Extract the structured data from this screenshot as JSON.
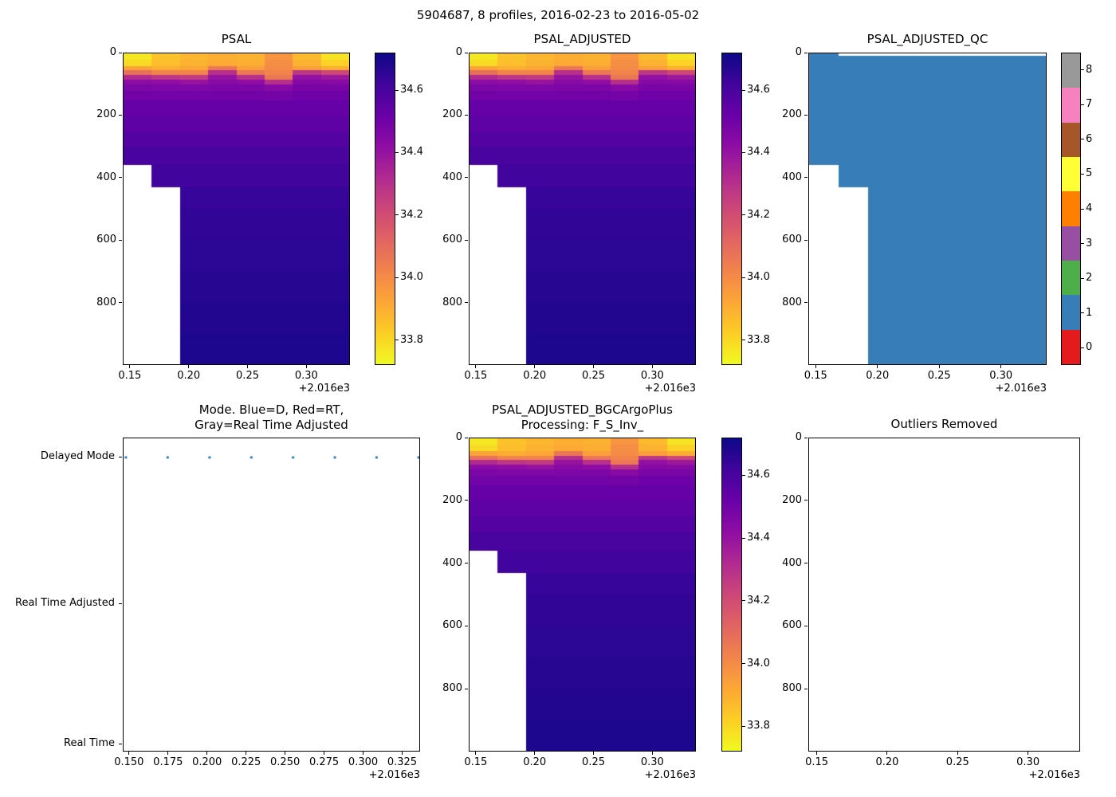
{
  "figure": {
    "suptitle": "5904687, 8 profiles, 2016-02-23 to 2016-05-02",
    "platform": "5904687",
    "n_profiles": 8,
    "date_range": "2016-02-23 to 2016-05-02"
  },
  "colors": {
    "plasma_reversed_stops": [
      "#0d0887",
      "#41049d",
      "#6a00a8",
      "#8f0da4",
      "#b12a90",
      "#cc4778",
      "#e16462",
      "#f2844b",
      "#fca636",
      "#fcce25",
      "#f0f921"
    ],
    "qc_palette_set1": [
      "#e41a1c",
      "#377eb8",
      "#4daf4a",
      "#984ea3",
      "#ff7f00",
      "#ffff33",
      "#a65628",
      "#f781bf",
      "#999999"
    ],
    "mode_dot": "#1f77b4",
    "missing_data": "#ffffff",
    "axis": "#000000"
  },
  "chart_data": [
    {
      "type": "heatmap",
      "title": "PSAL",
      "variable": "PSAL",
      "colormap": "plasma_r",
      "vmin": 33.72,
      "vmax": 34.72,
      "ylim": [
        0,
        1000
      ],
      "y_inverted": true,
      "x_profile_times": [
        2016.1475,
        2016.1744,
        2016.2014,
        2016.2283,
        2016.2552,
        2016.2821,
        2016.309,
        2016.336
      ],
      "x_edges": [
        2016.144,
        2016.1681,
        2016.1922,
        2016.2164,
        2016.2405,
        2016.2646,
        2016.2888,
        2016.3129,
        2016.337
      ],
      "depth_edges": [
        0,
        20,
        40,
        55,
        70,
        85,
        100,
        120,
        150,
        200,
        250,
        300,
        360,
        430,
        500,
        600,
        700,
        800,
        900,
        1000
      ],
      "values": [
        [
          33.76,
          33.79,
          33.93,
          34.08,
          34.32,
          34.43,
          34.47,
          34.5,
          34.53,
          34.55,
          34.57,
          34.6,
          null,
          null,
          null,
          null,
          null,
          null,
          null
        ],
        [
          33.85,
          33.86,
          33.9,
          34.02,
          34.28,
          34.42,
          34.46,
          34.5,
          34.53,
          34.55,
          34.57,
          34.6,
          34.62,
          null,
          null,
          null,
          null,
          null,
          null
        ],
        [
          33.88,
          33.89,
          33.92,
          34.02,
          34.26,
          34.4,
          34.46,
          34.5,
          34.53,
          34.55,
          34.57,
          34.6,
          34.62,
          34.64,
          34.65,
          34.66,
          34.67,
          34.68,
          34.69
        ],
        [
          33.9,
          33.91,
          34.06,
          34.3,
          34.4,
          34.44,
          34.47,
          34.5,
          34.53,
          34.55,
          34.57,
          34.6,
          34.62,
          34.64,
          34.65,
          34.66,
          34.67,
          34.68,
          34.69
        ],
        [
          33.89,
          33.9,
          33.94,
          34.06,
          34.3,
          34.42,
          34.47,
          34.5,
          34.53,
          34.55,
          34.57,
          34.6,
          34.62,
          34.64,
          34.65,
          34.66,
          34.67,
          34.68,
          34.69
        ],
        [
          33.97,
          33.99,
          34.0,
          34.02,
          34.06,
          34.3,
          34.44,
          34.49,
          34.53,
          34.55,
          34.57,
          34.6,
          34.62,
          34.64,
          34.65,
          34.66,
          34.67,
          34.68,
          34.69
        ],
        [
          33.87,
          33.89,
          33.94,
          34.28,
          34.41,
          34.45,
          34.48,
          34.51,
          34.53,
          34.55,
          34.57,
          34.6,
          34.62,
          34.64,
          34.65,
          34.66,
          34.67,
          34.68,
          34.69
        ],
        [
          33.77,
          33.81,
          33.9,
          34.22,
          34.38,
          34.44,
          34.48,
          34.51,
          34.53,
          34.55,
          34.57,
          34.6,
          34.62,
          34.64,
          34.65,
          34.66,
          34.67,
          34.68,
          34.69
        ]
      ],
      "x_tick_values": [
        2016.15,
        2016.2,
        2016.25,
        2016.3
      ],
      "x_tick_labels": [
        "0.15",
        "0.20",
        "0.25",
        "0.30"
      ],
      "y_tick_values": [
        0,
        200,
        400,
        600,
        800
      ],
      "y_tick_labels": [
        "0",
        "200",
        "400",
        "600",
        "800"
      ],
      "x_offset_label": "+2.016e3",
      "colorbar": {
        "type": "gradient",
        "tick_values": [
          34.6,
          34.4,
          34.2,
          34.0,
          33.8
        ],
        "tick_labels": [
          "34.6",
          "34.4",
          "34.2",
          "34.0",
          "33.8"
        ]
      }
    },
    {
      "type": "heatmap",
      "title": "PSAL_ADJUSTED",
      "variable": "PSAL_ADJUSTED",
      "ref": 0
    },
    {
      "type": "heatmap",
      "title": "PSAL_ADJUSTED_QC",
      "variable": "PSAL_ADJUSTED_QC",
      "ref": 0,
      "qc_value": 1,
      "top_gap_m": 8,
      "top_gap_start_col": 1,
      "colorbar": {
        "type": "discrete",
        "tick_values": [
          0,
          1,
          2,
          3,
          4,
          5,
          6,
          7,
          8
        ],
        "tick_labels": [
          "0",
          "1",
          "2",
          "3",
          "4",
          "5",
          "6",
          "7",
          "8"
        ]
      }
    },
    {
      "type": "scatter",
      "title": "Mode. Blue=D, Red=RT,\nGray=Real Time Adjusted",
      "categories": [
        "Delayed Mode",
        "Real Time Adjusted",
        "Real Time"
      ],
      "points": {
        "x": [
          2016.1475,
          2016.1744,
          2016.2014,
          2016.2283,
          2016.2552,
          2016.2821,
          2016.309,
          2016.336
        ],
        "category": "Delayed Mode"
      },
      "xlim": [
        2016.146,
        2016.3365
      ],
      "x_tick_values": [
        2016.15,
        2016.175,
        2016.2,
        2016.225,
        2016.25,
        2016.275,
        2016.3,
        2016.325
      ],
      "x_tick_labels": [
        "0.150",
        "0.175",
        "0.200",
        "0.225",
        "0.250",
        "0.275",
        "0.300",
        "0.325"
      ],
      "x_offset_label": "+2.016e3"
    },
    {
      "type": "heatmap",
      "title": "PSAL_ADJUSTED_BGCArgoPlus\nProcessing: F_S_Inv_",
      "variable": "PSAL_ADJUSTED_BGCArgoPlus",
      "ref": 0
    },
    {
      "type": "empty",
      "title": "Outliers Removed",
      "xlim": [
        2016.144,
        2016.337
      ],
      "ylim": [
        0,
        1000
      ],
      "y_inverted": true,
      "x_tick_values": [
        2016.15,
        2016.2,
        2016.25,
        2016.3
      ],
      "x_tick_labels": [
        "0.15",
        "0.20",
        "0.25",
        "0.30"
      ],
      "y_tick_values": [
        0,
        200,
        400,
        600,
        800
      ],
      "y_tick_labels": [
        "0",
        "200",
        "400",
        "600",
        "800"
      ],
      "x_offset_label": "+2.016e3"
    }
  ]
}
